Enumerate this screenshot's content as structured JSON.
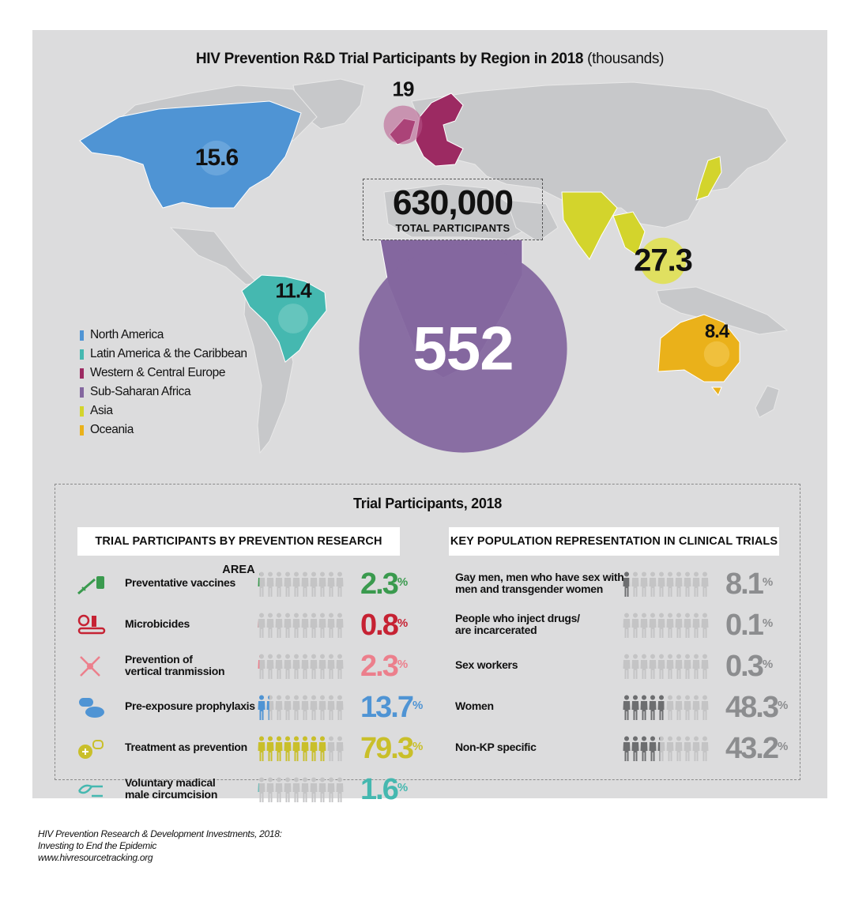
{
  "map": {
    "title": "HIV Prevention R&D Trial Participants by Region in 2018",
    "title_unit": "(thousands)",
    "total_value": "630,000",
    "total_label": "TOTAL PARTICIPANTS"
  },
  "legend": [
    {
      "label": "North America",
      "color": "#4f94d4"
    },
    {
      "label": "Latin America & the Caribbean",
      "color": "#45b8b0"
    },
    {
      "label": "Western & Central Europe",
      "color": "#9c2a62"
    },
    {
      "label": "Sub-Saharan Africa",
      "color": "#84679f"
    },
    {
      "label": "Asia",
      "color": "#d3d42c"
    },
    {
      "label": "Oceania",
      "color": "#eab11a"
    }
  ],
  "chart_data": [
    {
      "type": "bubble",
      "title": "HIV Prevention R&D Trial Participants by Region in 2018 (thousands)",
      "categories": [
        "North America",
        "Latin America & the Caribbean",
        "Western & Central Europe",
        "Sub-Saharan Africa",
        "Asia",
        "Oceania"
      ],
      "values": [
        15.6,
        11.4,
        19,
        552,
        27.3,
        8.4
      ],
      "value_labels": [
        "15.6",
        "11.4",
        "19",
        "552",
        "27.3",
        "8.4"
      ],
      "colors": [
        "#4f94d4",
        "#45b8b0",
        "#9c2a62",
        "#84679f",
        "#d3d42c",
        "#eab11a"
      ],
      "total": 630000
    },
    {
      "type": "pictogram",
      "title": "TRIAL PARTICIPANTS BY PREVENTION RESEARCH AREA",
      "categories": [
        "Preventative vaccines",
        "Microbicides",
        "Prevention of vertical tranmission",
        "Pre-exposure prophylaxis",
        "Treatment as prevention",
        "Voluntary madical male circumcision"
      ],
      "values": [
        2.3,
        0.8,
        2.3,
        13.7,
        79.3,
        1.6
      ],
      "value_labels": [
        "2.3",
        "0.8",
        "2.3",
        "13.7",
        "79.3",
        "1.6"
      ],
      "unit": "%",
      "colors": [
        "#3a9a4e",
        "#c62233",
        "#ec7f8c",
        "#4f94d4",
        "#c9bf2a",
        "#45b8b0"
      ]
    },
    {
      "type": "pictogram",
      "title": "KEY POPULATION REPRESENTATION IN CLINICAL TRIALS",
      "categories": [
        "Gay men, men who have sex with men and transgender women",
        "People who inject drugs/ are incarcerated",
        "Sex workers",
        "Women",
        "Non-KP specific"
      ],
      "values": [
        8.1,
        0.1,
        0.3,
        48.3,
        43.2
      ],
      "value_labels": [
        "8.1",
        "0.1",
        "0.3",
        "48.3",
        "43.2"
      ],
      "unit": "%",
      "colors": [
        "#6d6e70",
        "#6d6e70",
        "#6d6e70",
        "#6d6e70",
        "#6d6e70"
      ]
    }
  ],
  "lower": {
    "title": "Trial Participants, 2018",
    "left_heading": "TRIAL PARTICIPANTS BY PREVENTION RESEARCH AREA",
    "right_heading": "KEY POPULATION REPRESENTATION IN CLINICAL TRIALS",
    "left_rows": [
      {
        "label_lines": [
          "Preventative vaccines"
        ],
        "pct": "2.3",
        "unit": "%",
        "value": 2.3,
        "color": "#3a9a4e",
        "icon": "syringe-vial-icon"
      },
      {
        "label_lines": [
          "Microbicides"
        ],
        "pct": "0.8",
        "unit": "%",
        "value": 0.8,
        "color": "#c62233",
        "icon": "microbicide-applicator-icon"
      },
      {
        "label_lines": [
          "Prevention of",
          "vertical tranmission"
        ],
        "pct": "2.3",
        "unit": "%",
        "value": 2.3,
        "color": "#ec7f8c",
        "icon": "mother-child-icon"
      },
      {
        "label_lines": [
          "Pre-exposure prophylaxis"
        ],
        "pct": "13.7",
        "unit": "%",
        "value": 13.7,
        "color": "#4f94d4",
        "icon": "pills-icon"
      },
      {
        "label_lines": [
          "Treatment as prevention"
        ],
        "pct": "79.3",
        "unit": "%",
        "value": 79.3,
        "color": "#c9bf2a",
        "icon": "pill-bottle-icon"
      },
      {
        "label_lines": [
          "Voluntary madical",
          "male circumcision"
        ],
        "pct": "1.6",
        "unit": "%",
        "value": 1.6,
        "color": "#45b8b0",
        "icon": "circumcision-icon"
      }
    ],
    "right_rows": [
      {
        "label_lines": [
          "Gay men, men who have sex with",
          "men and transgender women"
        ],
        "pct": "8.1",
        "unit": "%",
        "value": 8.1
      },
      {
        "label_lines": [
          "People who inject drugs/",
          "are incarcerated"
        ],
        "pct": "0.1",
        "unit": "%",
        "value": 0.1
      },
      {
        "label_lines": [
          "Sex workers"
        ],
        "pct": "0.3",
        "unit": "%",
        "value": 0.3
      },
      {
        "label_lines": [
          "Women"
        ],
        "pct": "48.3",
        "unit": "%",
        "value": 48.3
      },
      {
        "label_lines": [
          "Non-KP specific"
        ],
        "pct": "43.2",
        "unit": "%",
        "value": 43.2
      }
    ],
    "right_color": "#6d6e70",
    "empty_color": "#c4c4c5"
  },
  "footer": {
    "line1": "HIV Prevention Research & Development Investments, 2018:",
    "line2": "Investing to End the Epidemic",
    "line3": "www.hivresourcetracking.org"
  }
}
